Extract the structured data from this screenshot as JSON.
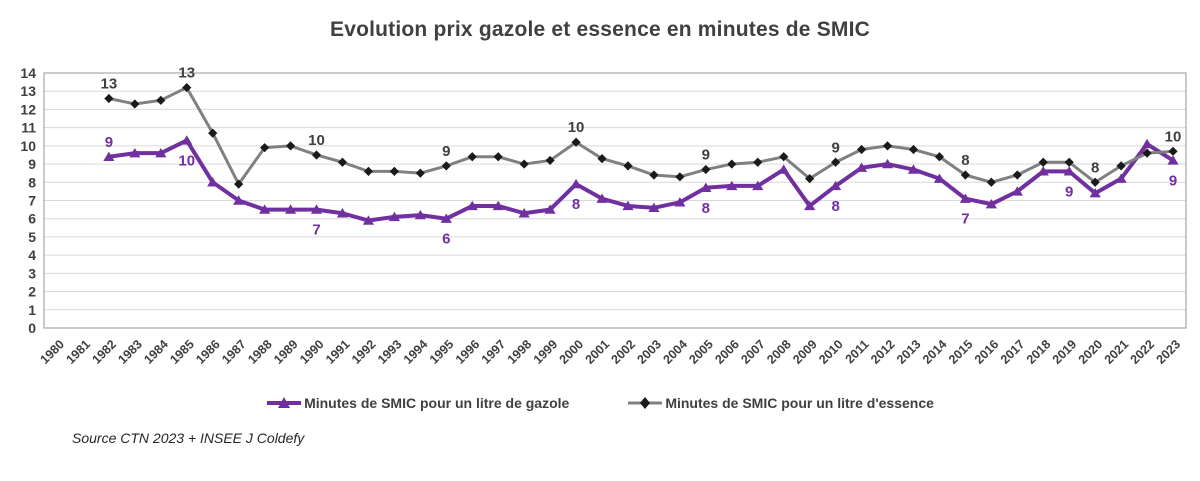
{
  "title": "Evolution prix gazole et essence en minutes de SMIC",
  "source_note": "Source CTN 2023 + INSEE J Coldefy",
  "colors": {
    "gazole": "#7030A0",
    "essence": "#808080",
    "essence_marker": "#1a1a1a",
    "axis_text": "#404040",
    "gridline": "#d9d9d9",
    "plot_border": "#a6a6a6",
    "title_text": "#404040",
    "source_text": "#262626"
  },
  "chart_data": {
    "type": "line",
    "title": "Evolution prix gazole et essence en minutes de SMIC",
    "xlabel": "",
    "ylabel": "",
    "ylim": [
      0,
      14
    ],
    "ytick_step": 1,
    "grid": true,
    "legend_position": "bottom",
    "categories": [
      "1980",
      "1981",
      "1982",
      "1983",
      "1984",
      "1985",
      "1986",
      "1987",
      "1988",
      "1989",
      "1990",
      "1991",
      "1992",
      "1993",
      "1994",
      "1995",
      "1996",
      "1997",
      "1998",
      "1999",
      "2000",
      "2001",
      "2002",
      "2003",
      "2004",
      "2005",
      "2006",
      "2007",
      "2008",
      "2009",
      "2010",
      "2011",
      "2012",
      "2013",
      "2014",
      "2015",
      "2016",
      "2017",
      "2018",
      "2019",
      "2020",
      "2021",
      "2022",
      "2023"
    ],
    "series": [
      {
        "id": "gazole",
        "name": "Minutes de SMIC pour un litre de gazole",
        "color": "#7030A0",
        "marker": "triangle",
        "marker_color": "#7030A0",
        "line_width": 4,
        "values": [
          null,
          null,
          9.4,
          9.6,
          9.6,
          10.3,
          8.0,
          7.0,
          6.5,
          6.5,
          6.5,
          6.3,
          5.9,
          6.1,
          6.2,
          6.0,
          6.7,
          6.7,
          6.3,
          6.5,
          7.9,
          7.1,
          6.7,
          6.6,
          6.9,
          7.7,
          7.8,
          7.8,
          8.7,
          6.7,
          7.8,
          8.8,
          9.0,
          8.7,
          8.2,
          7.1,
          6.8,
          7.5,
          8.6,
          8.6,
          7.4,
          8.2,
          10.1,
          9.2
        ]
      },
      {
        "id": "essence",
        "name": "Minutes de SMIC pour un litre d'essence",
        "color": "#808080",
        "marker": "diamond",
        "marker_color": "#1a1a1a",
        "line_width": 3,
        "values": [
          null,
          null,
          12.6,
          12.3,
          12.5,
          13.2,
          10.7,
          7.9,
          9.9,
          10.0,
          9.5,
          9.1,
          8.6,
          8.6,
          8.5,
          8.9,
          9.4,
          9.4,
          9.0,
          9.2,
          10.2,
          9.3,
          8.9,
          8.4,
          8.3,
          8.7,
          9.0,
          9.1,
          9.4,
          8.2,
          9.1,
          9.8,
          10.0,
          9.8,
          9.4,
          8.4,
          8.0,
          8.4,
          9.1,
          9.1,
          8.0,
          8.9,
          9.6,
          9.7
        ]
      }
    ],
    "point_labels": [
      {
        "series": "essence",
        "year": "1982",
        "text": "13",
        "pos": "above"
      },
      {
        "series": "essence",
        "year": "1985",
        "text": "13",
        "pos": "above"
      },
      {
        "series": "essence",
        "year": "1990",
        "text": "10",
        "pos": "above"
      },
      {
        "series": "essence",
        "year": "1995",
        "text": "9",
        "pos": "above"
      },
      {
        "series": "essence",
        "year": "2000",
        "text": "10",
        "pos": "above"
      },
      {
        "series": "essence",
        "year": "2005",
        "text": "9",
        "pos": "above"
      },
      {
        "series": "essence",
        "year": "2010",
        "text": "9",
        "pos": "above"
      },
      {
        "series": "essence",
        "year": "2015",
        "text": "8",
        "pos": "above"
      },
      {
        "series": "essence",
        "year": "2020",
        "text": "8",
        "pos": "above"
      },
      {
        "series": "essence",
        "year": "2023",
        "text": "10",
        "pos": "above"
      },
      {
        "series": "gazole",
        "year": "1982",
        "text": "9",
        "pos": "above"
      },
      {
        "series": "gazole",
        "year": "1985",
        "text": "10",
        "pos": "below"
      },
      {
        "series": "gazole",
        "year": "1990",
        "text": "7",
        "pos": "below"
      },
      {
        "series": "gazole",
        "year": "1995",
        "text": "6",
        "pos": "below"
      },
      {
        "series": "gazole",
        "year": "2000",
        "text": "8",
        "pos": "below"
      },
      {
        "series": "gazole",
        "year": "2005",
        "text": "8",
        "pos": "below"
      },
      {
        "series": "gazole",
        "year": "2010",
        "text": "8",
        "pos": "below"
      },
      {
        "series": "gazole",
        "year": "2015",
        "text": "7",
        "pos": "below"
      },
      {
        "series": "gazole",
        "year": "2019",
        "text": "9",
        "pos": "below"
      },
      {
        "series": "gazole",
        "year": "2023",
        "text": "9",
        "pos": "below"
      }
    ]
  },
  "legend": {
    "items": [
      {
        "id": "gazole",
        "label": "Minutes de SMIC pour un litre de gazole"
      },
      {
        "id": "essence",
        "label": "Minutes de SMIC pour un litre d'essence"
      }
    ]
  }
}
